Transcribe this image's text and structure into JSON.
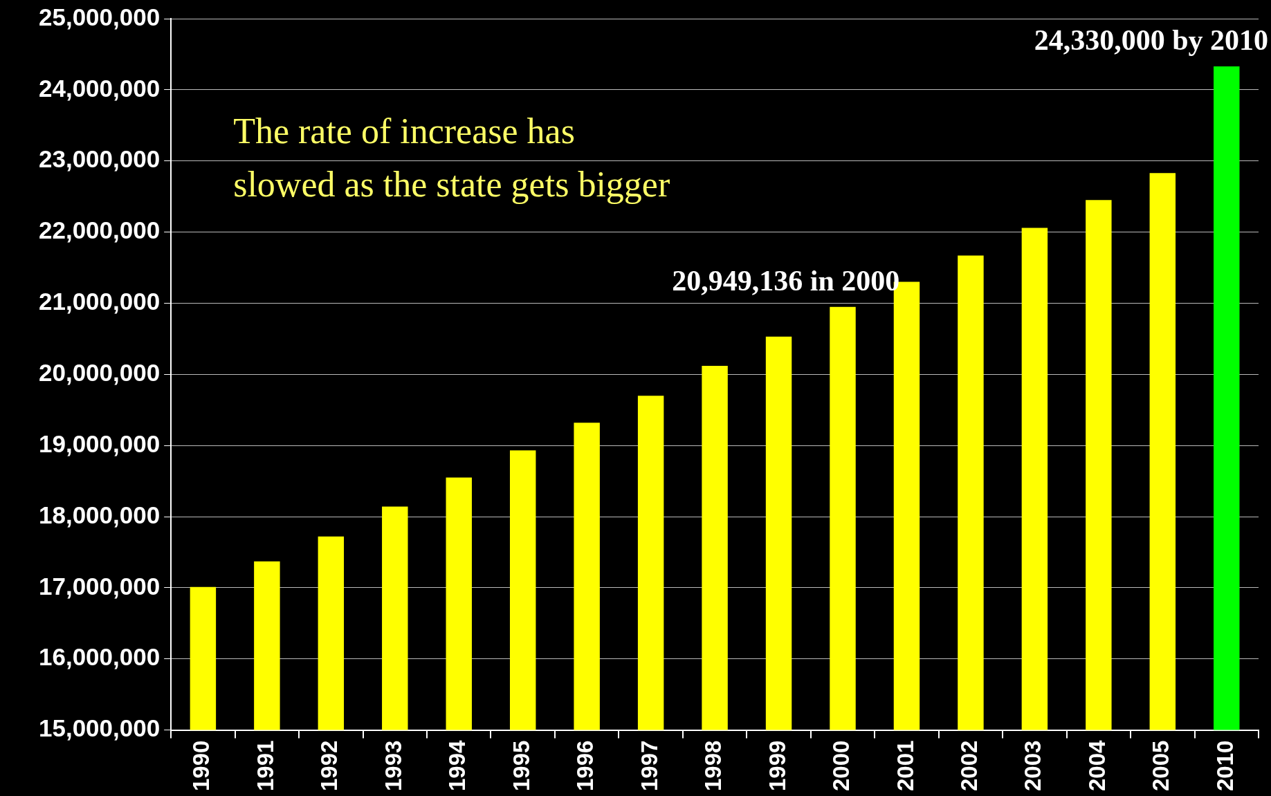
{
  "chart_data": {
    "type": "bar",
    "categories": [
      "1990",
      "1991",
      "1992",
      "1993",
      "1994",
      "1995",
      "1996",
      "1997",
      "1998",
      "1999",
      "2000",
      "2001",
      "2002",
      "2003",
      "2004",
      "2005",
      "2010"
    ],
    "values": [
      17010000,
      17370000,
      17720000,
      18140000,
      18550000,
      18930000,
      19320000,
      19700000,
      20120000,
      20530000,
      20949136,
      21300000,
      21670000,
      22060000,
      22450000,
      22830000,
      24330000
    ],
    "colors": [
      "#ffff00",
      "#ffff00",
      "#ffff00",
      "#ffff00",
      "#ffff00",
      "#ffff00",
      "#ffff00",
      "#ffff00",
      "#ffff00",
      "#ffff00",
      "#ffff00",
      "#ffff00",
      "#ffff00",
      "#ffff00",
      "#ffff00",
      "#ffff00",
      "#00ff00"
    ],
    "ylim": [
      15000000,
      25000000
    ],
    "yticks": [
      {
        "value": 15000000,
        "label": "15,000,000"
      },
      {
        "value": 16000000,
        "label": "16,000,000"
      },
      {
        "value": 17000000,
        "label": "17,000,000"
      },
      {
        "value": 18000000,
        "label": "18,000,000"
      },
      {
        "value": 19000000,
        "label": "19,000,000"
      },
      {
        "value": 20000000,
        "label": "20,000,000"
      },
      {
        "value": 21000000,
        "label": "21,000,000"
      },
      {
        "value": 22000000,
        "label": "22,000,000"
      },
      {
        "value": 23000000,
        "label": "23,000,000"
      },
      {
        "value": 24000000,
        "label": "24,000,000"
      },
      {
        "value": 25000000,
        "label": "25,000,000"
      }
    ],
    "grid": "y",
    "legend": false,
    "annotations": [
      {
        "text": "20,949,136 in 2000",
        "x": "2000",
        "y": 20949136
      },
      {
        "text": "24,330,000 by 2010",
        "x": "2010",
        "y": 24330000
      },
      "The rate of increase has\nslowed as the state gets bigger"
    ]
  }
}
